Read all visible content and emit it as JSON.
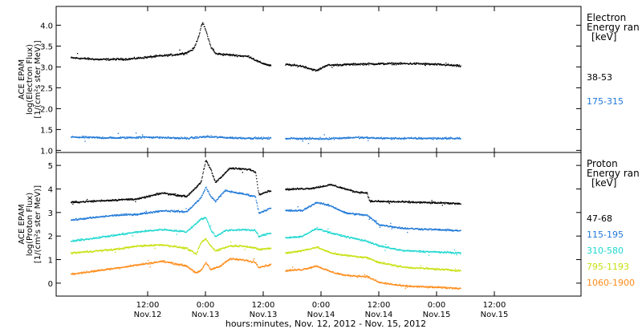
{
  "chart_data": {
    "type": "scatter",
    "xlabel": "hours:minutes, Nov. 12, 2012 - Nov. 15, 2012",
    "x_range_hours": [
      -7,
      102
    ],
    "x_ticks": [
      {
        "hours": 12,
        "time": "12:00",
        "day": "Nov.12"
      },
      {
        "hours": 24,
        "time": "0:00",
        "day": "Nov.13"
      },
      {
        "hours": 36,
        "time": "12:00",
        "day": "Nov.13"
      },
      {
        "hours": 48,
        "time": "0:00",
        "day": "Nov.14"
      },
      {
        "hours": 60,
        "time": "12:00",
        "day": "Nov.14"
      },
      {
        "hours": 72,
        "time": "0:00",
        "day": "Nov.15"
      },
      {
        "hours": 84,
        "time": "12:00",
        "day": "Nov.15"
      }
    ],
    "panels": [
      {
        "name": "electron",
        "ylabel": [
          "ACE EPAM",
          "log(Electron Flux)",
          "[1/(cm²s ster MeV)]"
        ],
        "ylim": [
          0.95,
          4.45
        ],
        "yticks": [
          "1.0",
          "1.5",
          "2.0",
          "2.5",
          "3.0",
          "3.5",
          "4.0"
        ],
        "legend_title": [
          "Electron",
          "Energy ran",
          "[keV]"
        ],
        "data_gaps_hours": [
          [
            37.5,
            40.5
          ]
        ],
        "series": [
          {
            "name": "38-53",
            "color": "#000000",
            "points": [
              [
                -4,
                3.23
              ],
              [
                2,
                3.19
              ],
              [
                8,
                3.2
              ],
              [
                14,
                3.27
              ],
              [
                18,
                3.31
              ],
              [
                20,
                3.35
              ],
              [
                21.5,
                3.45
              ],
              [
                22.5,
                3.75
              ],
              [
                23.3,
                4.08
              ],
              [
                24,
                3.88
              ],
              [
                25,
                3.5
              ],
              [
                26,
                3.33
              ],
              [
                29,
                3.3
              ],
              [
                33,
                3.26
              ],
              [
                35,
                3.13
              ],
              [
                37.4,
                3.04
              ],
              [
                40.5,
                3.07
              ],
              [
                44,
                3.03
              ],
              [
                47,
                2.92
              ],
              [
                49,
                3.05
              ],
              [
                56,
                3.08
              ],
              [
                62,
                3.09
              ],
              [
                68,
                3.09
              ],
              [
                74,
                3.06
              ],
              [
                77,
                3.03
              ]
            ]
          },
          {
            "name": "175-315",
            "color": "#1f78d8",
            "points": [
              [
                -4,
                1.33
              ],
              [
                5,
                1.31
              ],
              [
                12,
                1.33
              ],
              [
                20,
                1.3
              ],
              [
                24,
                1.34
              ],
              [
                30,
                1.31
              ],
              [
                37.4,
                1.3
              ],
              [
                40.5,
                1.3
              ],
              [
                48,
                1.29
              ],
              [
                55,
                1.32
              ],
              [
                62,
                1.3
              ],
              [
                70,
                1.3
              ],
              [
                77,
                1.3
              ]
            ]
          }
        ]
      },
      {
        "name": "proton",
        "ylabel": [
          "ACE EPAM",
          "log(Proton Flux)",
          "[1/(cm²s ster MeV)]"
        ],
        "ylim": [
          -0.55,
          5.55
        ],
        "yticks": [
          "0",
          "1",
          "2",
          "3",
          "4",
          "5"
        ],
        "legend_title": [
          "Proton",
          "Energy ran",
          "[keV]"
        ],
        "data_gaps_hours": [
          [
            37.5,
            40.5
          ]
        ],
        "series": [
          {
            "name": "47-68",
            "color": "#000000",
            "points": [
              [
                -4,
                3.45
              ],
              [
                5,
                3.55
              ],
              [
                10,
                3.6
              ],
              [
                15,
                3.85
              ],
              [
                20,
                3.7
              ],
              [
                23,
                4.3
              ],
              [
                24,
                5.25
              ],
              [
                25,
                4.85
              ],
              [
                26,
                4.3
              ],
              [
                28,
                4.7
              ],
              [
                29,
                4.9
              ],
              [
                33,
                4.85
              ],
              [
                34.3,
                4.75
              ],
              [
                35,
                3.8
              ],
              [
                37.4,
                3.95
              ],
              [
                40.5,
                4.0
              ],
              [
                46,
                4.05
              ],
              [
                50,
                4.2
              ],
              [
                55,
                3.9
              ],
              [
                57.5,
                3.85
              ],
              [
                58,
                3.5
              ],
              [
                65,
                3.47
              ],
              [
                77,
                3.4
              ]
            ]
          },
          {
            "name": "115-195",
            "color": "#1f78d8",
            "points": [
              [
                -4,
                2.7
              ],
              [
                5,
                2.9
              ],
              [
                10,
                2.95
              ],
              [
                15,
                3.1
              ],
              [
                20,
                3.05
              ],
              [
                23,
                3.65
              ],
              [
                24,
                4.1
              ],
              [
                25,
                3.7
              ],
              [
                26,
                3.5
              ],
              [
                28,
                3.95
              ],
              [
                32,
                3.8
              ],
              [
                34.3,
                3.7
              ],
              [
                35,
                3.0
              ],
              [
                37.4,
                3.2
              ],
              [
                40.5,
                3.1
              ],
              [
                44,
                3.1
              ],
              [
                47,
                3.45
              ],
              [
                50,
                3.3
              ],
              [
                53,
                3.0
              ],
              [
                57.5,
                2.9
              ],
              [
                60,
                2.5
              ],
              [
                65,
                2.35
              ],
              [
                77,
                2.25
              ]
            ]
          },
          {
            "name": "310-580",
            "color": "#20d8d0",
            "points": [
              [
                -4,
                1.8
              ],
              [
                5,
                2.05
              ],
              [
                10,
                2.2
              ],
              [
                15,
                2.3
              ],
              [
                20,
                2.2
              ],
              [
                23,
                2.75
              ],
              [
                24,
                2.8
              ],
              [
                25,
                2.3
              ],
              [
                26,
                2.0
              ],
              [
                28,
                2.25
              ],
              [
                32,
                2.3
              ],
              [
                34.3,
                2.25
              ],
              [
                35,
                2.0
              ],
              [
                37.4,
                2.15
              ],
              [
                40.5,
                1.95
              ],
              [
                44,
                2.0
              ],
              [
                47,
                2.35
              ],
              [
                50,
                2.15
              ],
              [
                53,
                2.0
              ],
              [
                57.5,
                1.8
              ],
              [
                60,
                1.6
              ],
              [
                65,
                1.4
              ],
              [
                77,
                1.3
              ]
            ]
          },
          {
            "name": "795-1193",
            "color": "#c8e010",
            "points": [
              [
                -4,
                1.3
              ],
              [
                5,
                1.45
              ],
              [
                10,
                1.6
              ],
              [
                15,
                1.65
              ],
              [
                20,
                1.5
              ],
              [
                22,
                1.25
              ],
              [
                23,
                1.75
              ],
              [
                24,
                1.9
              ],
              [
                25,
                1.6
              ],
              [
                26,
                1.4
              ],
              [
                29,
                1.6
              ],
              [
                32,
                1.6
              ],
              [
                34.3,
                1.5
              ],
              [
                35,
                1.45
              ],
              [
                37.4,
                1.5
              ],
              [
                40.5,
                1.3
              ],
              [
                44,
                1.4
              ],
              [
                47,
                1.55
              ],
              [
                50,
                1.3
              ],
              [
                53,
                1.2
              ],
              [
                57.5,
                1.1
              ],
              [
                60,
                0.9
              ],
              [
                65,
                0.7
              ],
              [
                77,
                0.55
              ]
            ]
          },
          {
            "name": "1060-1900",
            "color": "#ff8c1a",
            "points": [
              [
                -4,
                0.4
              ],
              [
                5,
                0.65
              ],
              [
                10,
                0.8
              ],
              [
                15,
                0.95
              ],
              [
                20,
                0.75
              ],
              [
                22,
                0.45
              ],
              [
                23,
                0.55
              ],
              [
                24,
                0.9
              ],
              [
                25,
                0.6
              ],
              [
                27,
                0.75
              ],
              [
                29,
                1.05
              ],
              [
                32,
                1.0
              ],
              [
                34.3,
                0.9
              ],
              [
                35,
                0.7
              ],
              [
                37.4,
                0.8
              ],
              [
                40.5,
                0.55
              ],
              [
                44,
                0.6
              ],
              [
                47,
                0.75
              ],
              [
                50,
                0.5
              ],
              [
                53,
                0.35
              ],
              [
                57.5,
                0.3
              ],
              [
                60,
                0.05
              ],
              [
                65,
                -0.1
              ],
              [
                77,
                -0.2
              ]
            ]
          }
        ]
      }
    ]
  }
}
